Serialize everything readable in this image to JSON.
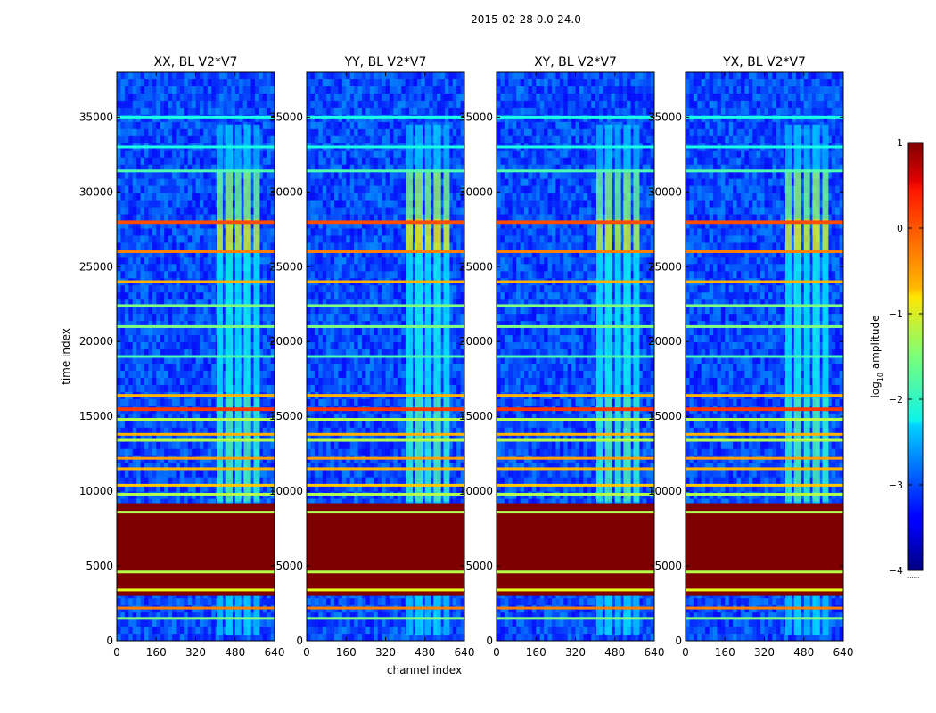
{
  "suptitle": "2015-02-28 0.0-24.0",
  "chart_data": {
    "type": "heatmap",
    "title": "2015-02-28 0.0-24.0",
    "xlabel": "channel index",
    "ylabel": "time index",
    "xlim": [
      0,
      640
    ],
    "ylim": [
      0,
      38000
    ],
    "xticks": [
      0,
      160,
      320,
      480,
      640
    ],
    "yticks": [
      0,
      5000,
      10000,
      15000,
      20000,
      25000,
      30000,
      35000
    ],
    "panels": [
      {
        "title": "XX, BL V2*V7",
        "rfi_strength": 0.85
      },
      {
        "title": "YY, BL V2*V7",
        "rfi_strength": 1.0
      },
      {
        "title": "XY, BL V2*V7",
        "rfi_strength": 0.8
      },
      {
        "title": "YX, BL V2*V7",
        "rfi_strength": 0.9
      }
    ],
    "saturated_range": [
      3000,
      9200
    ],
    "rfi_channel_range": [
      405,
      595
    ],
    "colorbar": {
      "label": "log",
      "label_sub": "10",
      "label_rest": " amplitude",
      "range": [
        -4,
        1
      ],
      "ticks": [
        {
          "value": 1,
          "label": "1"
        },
        {
          "value": 0,
          "label": "0"
        },
        {
          "value": -1,
          "label": "−1"
        },
        {
          "value": -2,
          "label": "−2"
        },
        {
          "value": -3,
          "label": "−3"
        },
        {
          "value": -4,
          "label": "−4"
        }
      ],
      "extra_label": "......"
    }
  }
}
